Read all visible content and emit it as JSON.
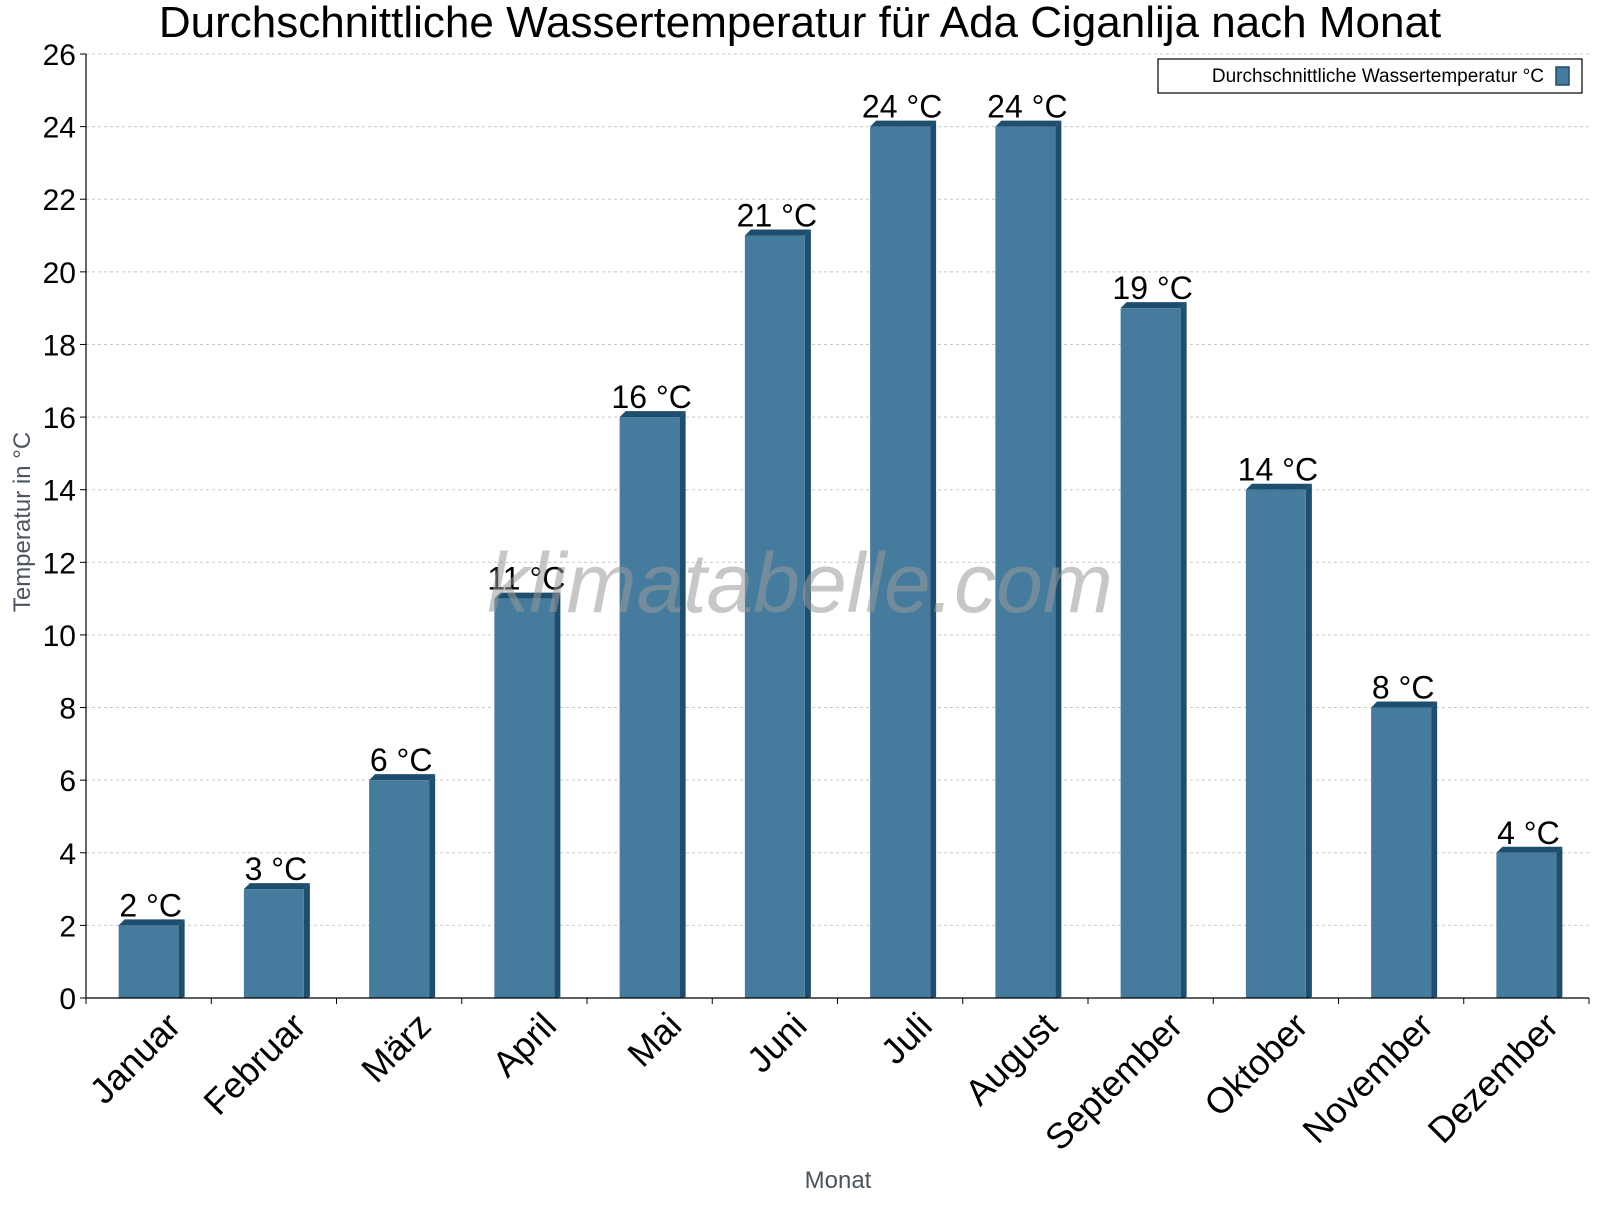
{
  "chart_data": {
    "type": "bar",
    "title": "Durchschnittliche Wassertemperatur für Ada Ciganlija nach Monat",
    "xlabel": "Monat",
    "ylabel": "Temperatur in °C",
    "categories": [
      "Januar",
      "Februar",
      "März",
      "April",
      "Mai",
      "Juni",
      "Juli",
      "August",
      "September",
      "Oktober",
      "November",
      "Dezember"
    ],
    "series": [
      {
        "name": "Durchschnittliche Wassertemperatur °C",
        "values": [
          2,
          3,
          6,
          11,
          16,
          21,
          24,
          24,
          19,
          14,
          8,
          4
        ],
        "labels": [
          "2 °C",
          "3 °C",
          "6 °C",
          "11 °C",
          "16 °C",
          "21 °C",
          "24 °C",
          "24 °C",
          "19 °C",
          "14 °C",
          "8 °C",
          "4 °C"
        ],
        "color": "#457b9d",
        "edge_color": "#1d4e6e"
      }
    ],
    "ylim": [
      0,
      26
    ],
    "yticks": [
      0,
      2,
      4,
      6,
      8,
      10,
      12,
      14,
      16,
      18,
      20,
      22,
      24,
      26
    ],
    "grid": true,
    "legend_position": "top-right",
    "watermark": "klimatabelle.com"
  }
}
